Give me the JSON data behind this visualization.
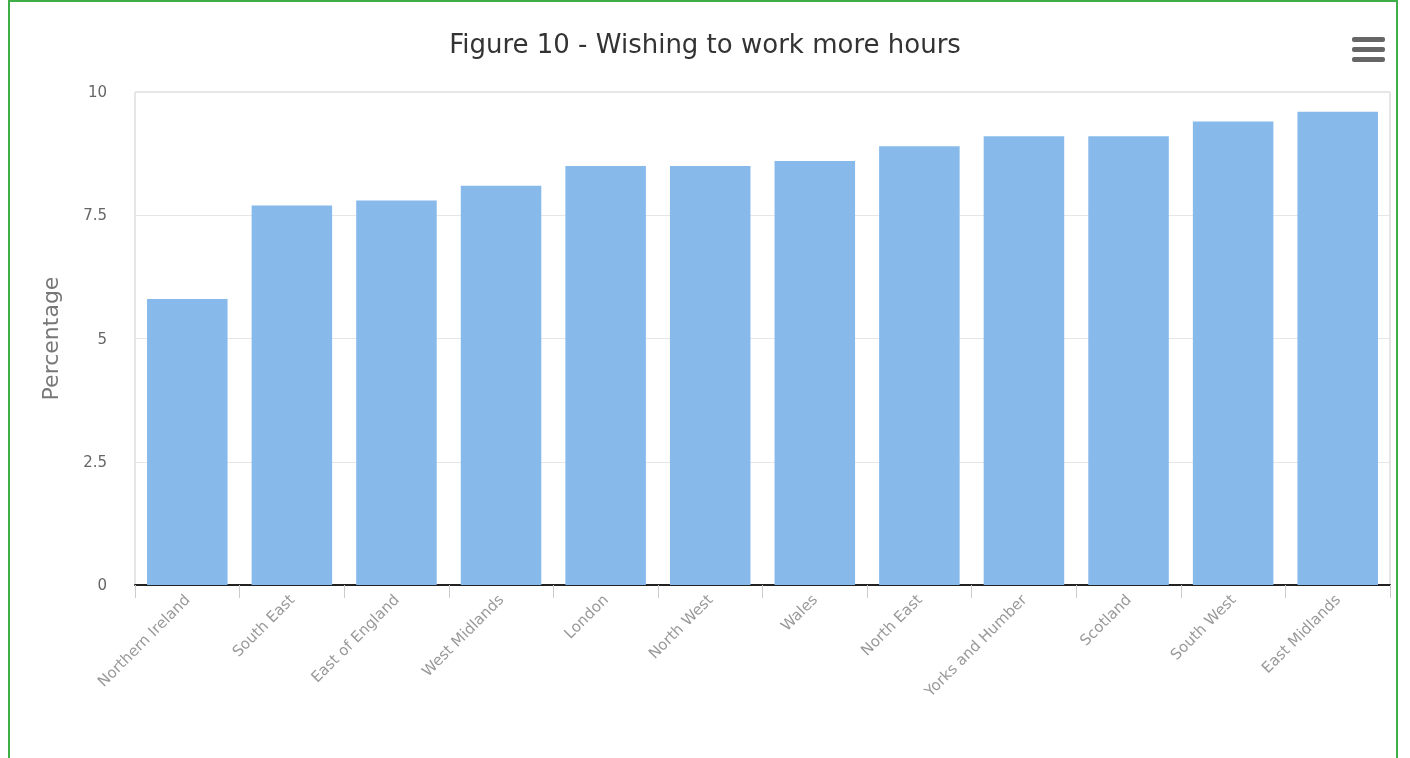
{
  "chart_data": {
    "type": "bar",
    "title": "Figure 10 - Wishing to work more hours",
    "ylabel": "Percentage",
    "categories": [
      "Northern Ireland",
      "South East",
      "East of England",
      "West Midlands",
      "London",
      "North West",
      "Wales",
      "North East",
      "Yorks and Humber",
      "Scotland",
      "South West",
      "East Midlands"
    ],
    "values": [
      5.8,
      7.7,
      7.8,
      8.1,
      8.5,
      8.5,
      8.6,
      8.9,
      9.1,
      9.1,
      9.4,
      9.6
    ],
    "color": "#87baeb",
    "ylim": [
      0,
      10
    ],
    "yticks": [
      0,
      2.5,
      5,
      7.5,
      10
    ],
    "grid": "y"
  }
}
